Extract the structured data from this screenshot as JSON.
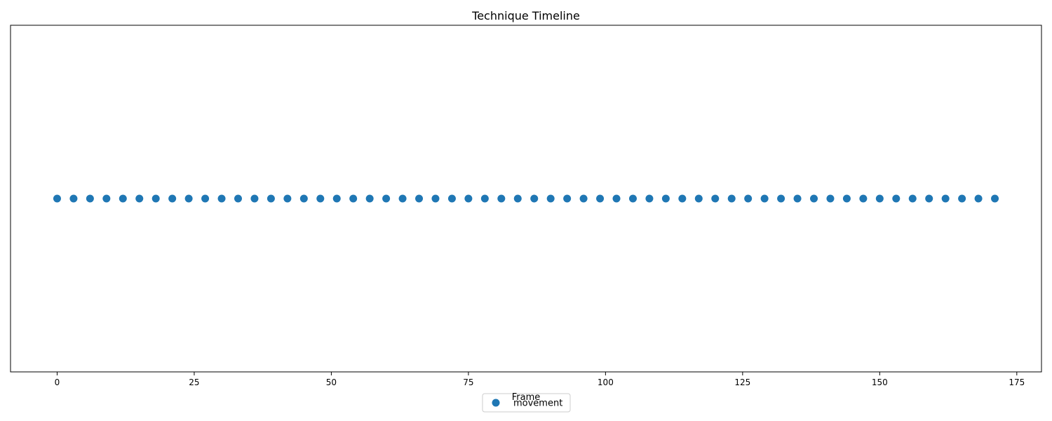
{
  "chart_data": {
    "type": "scatter",
    "title": "Technique Timeline",
    "xlabel": "Frame",
    "ylabel": "",
    "xlim": [
      -8.5,
      179.5
    ],
    "xticks": [
      0,
      25,
      50,
      75,
      100,
      125,
      150,
      175
    ],
    "y_axis_visible": false,
    "grid": false,
    "legend_position": "bottom-center",
    "series": [
      {
        "name": "movement",
        "color": "#1f77b4",
        "x": [
          0,
          3,
          6,
          9,
          12,
          15,
          18,
          21,
          24,
          27,
          30,
          33,
          36,
          39,
          42,
          45,
          48,
          51,
          54,
          57,
          60,
          63,
          66,
          69,
          72,
          75,
          78,
          81,
          84,
          87,
          90,
          93,
          96,
          99,
          102,
          105,
          108,
          111,
          114,
          117,
          120,
          123,
          126,
          129,
          132,
          135,
          138,
          141,
          144,
          147,
          150,
          153,
          156,
          159,
          162,
          165,
          168,
          171
        ],
        "y_level": 0.5
      }
    ]
  }
}
